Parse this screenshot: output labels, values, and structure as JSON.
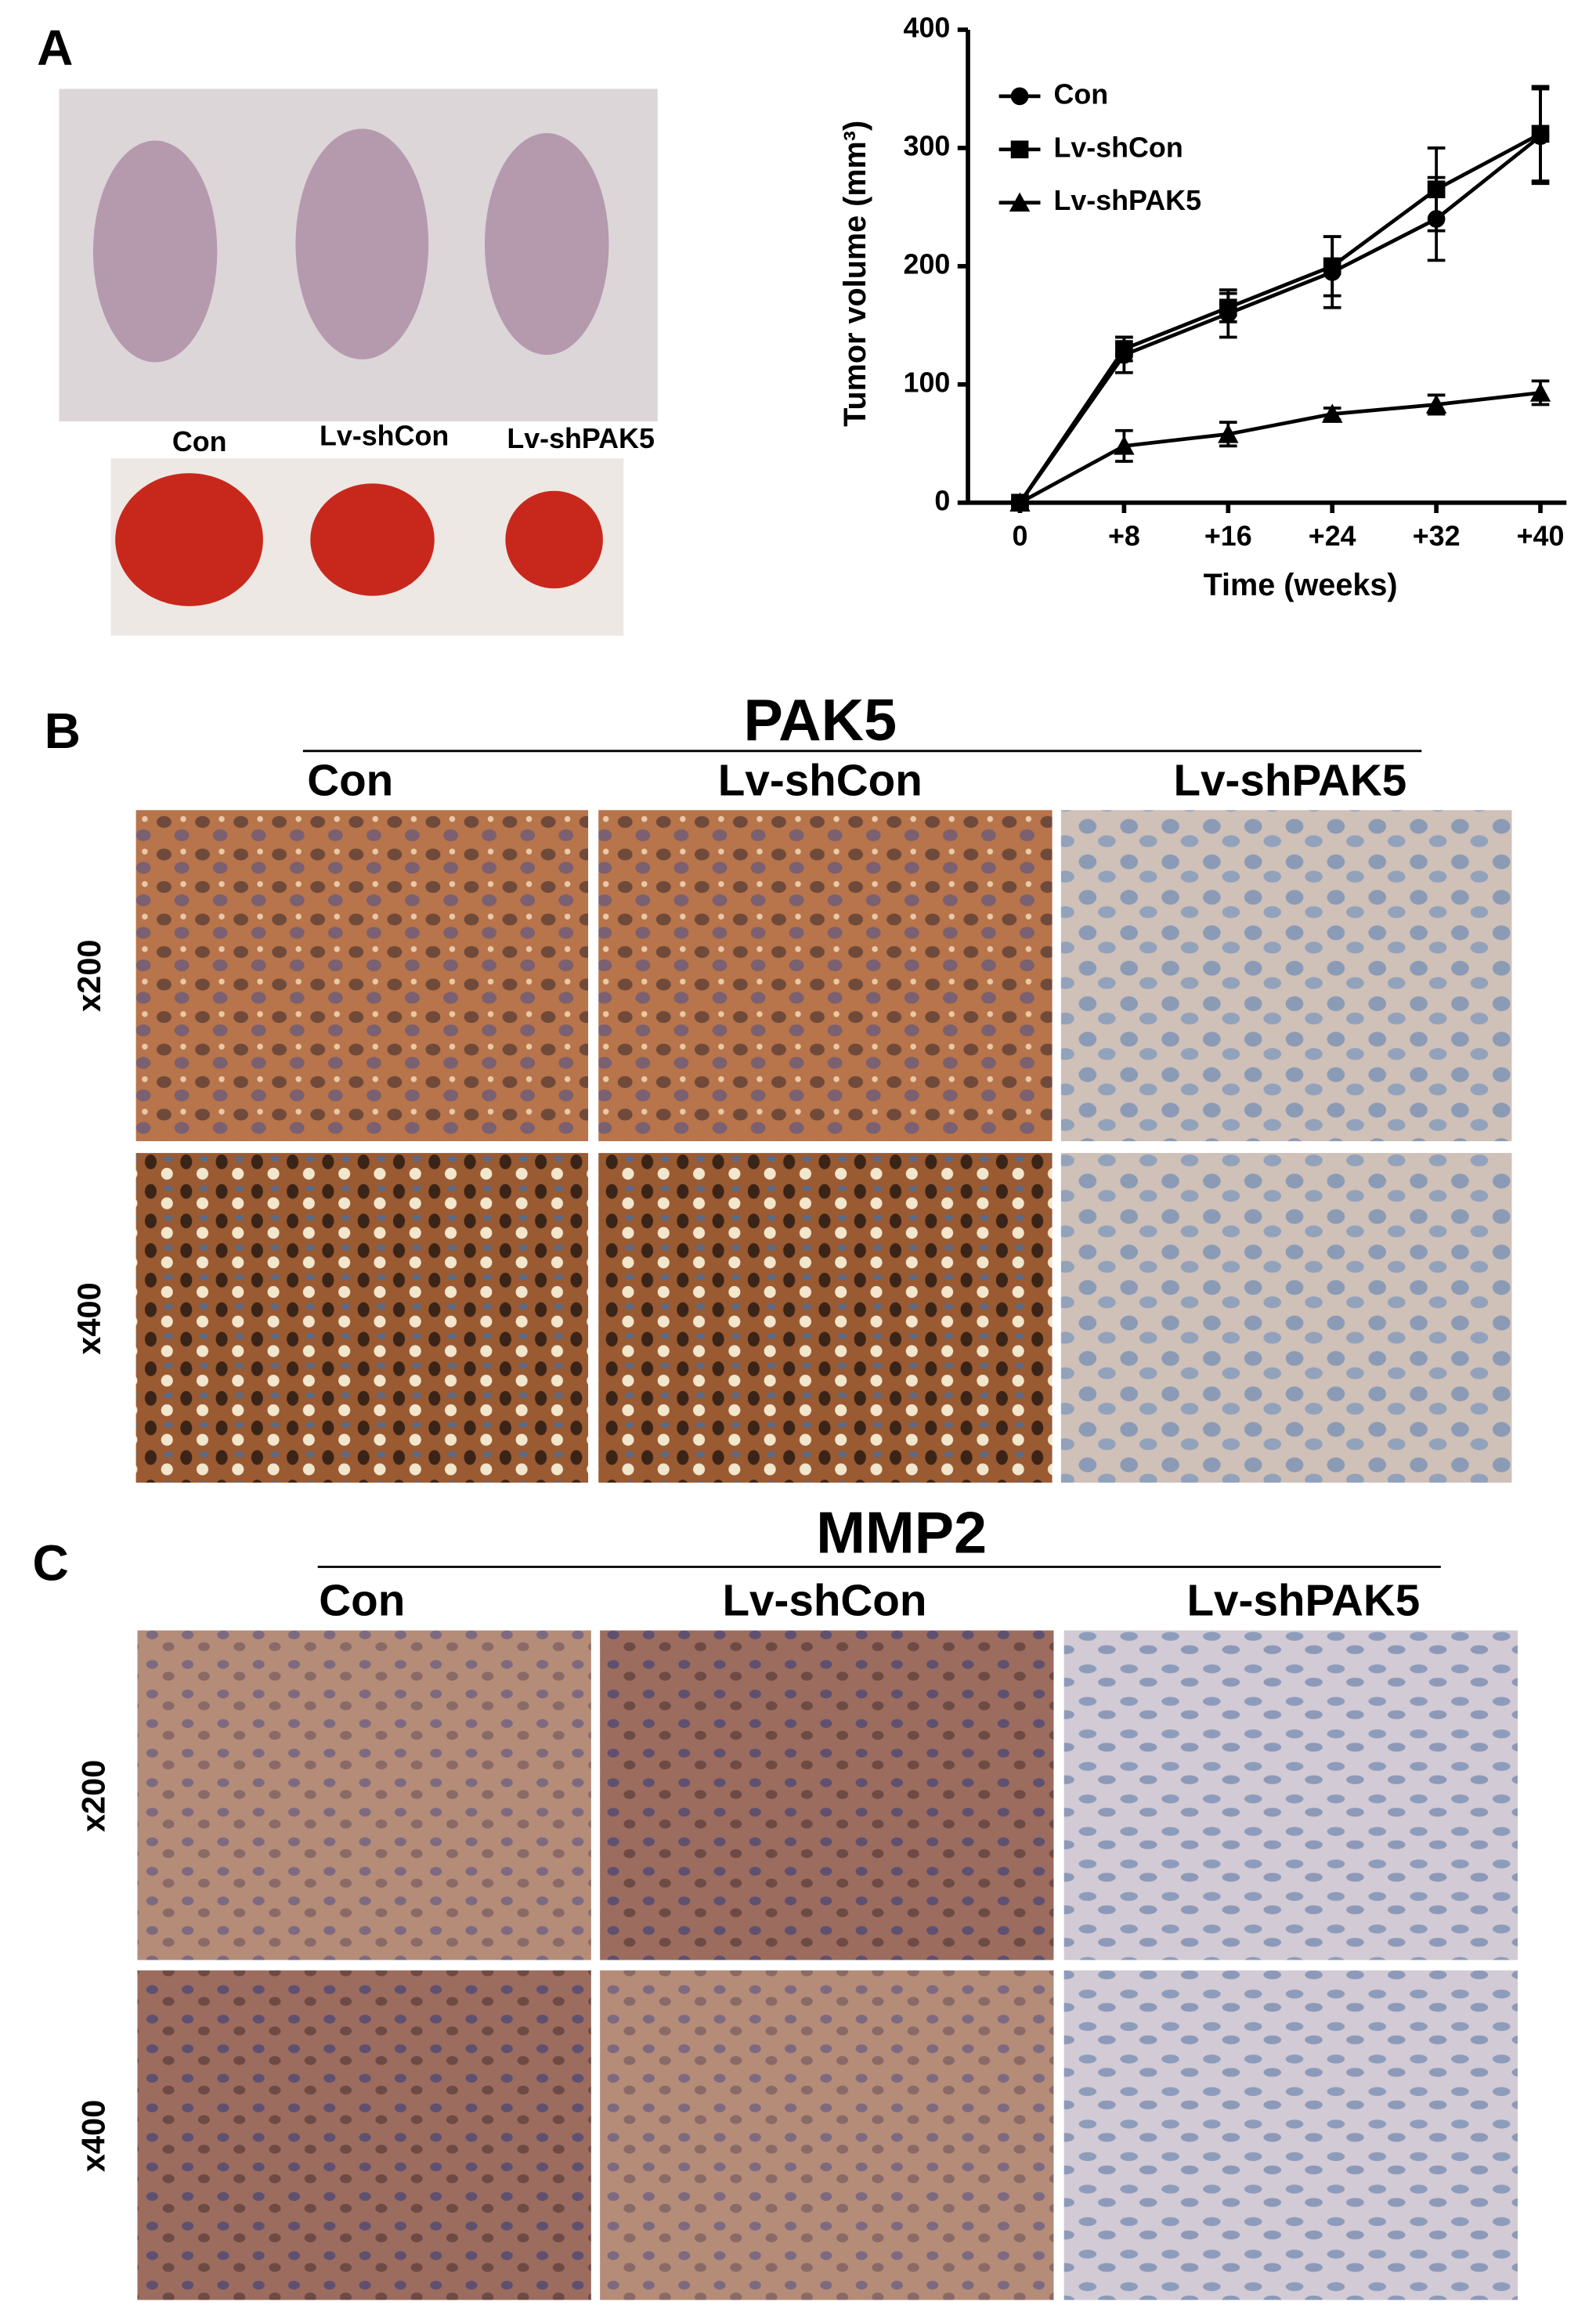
{
  "panel_a": {
    "label": "A",
    "groups": [
      "Con",
      "Lv-shCon",
      "Lv-shPAK5"
    ]
  },
  "chart_data": {
    "type": "line",
    "x_label": "Time (weeks)",
    "y_label": "Tumor volume (mm³)",
    "x": [
      0,
      8,
      16,
      24,
      32,
      40
    ],
    "xlim": [
      -4,
      42
    ],
    "xticks": [
      {
        "value": 0,
        "label": "0"
      },
      {
        "value": 8,
        "label": "+8"
      },
      {
        "value": 16,
        "label": "+16"
      },
      {
        "value": 24,
        "label": "+24"
      },
      {
        "value": 32,
        "label": "+32"
      },
      {
        "value": 40,
        "label": "+40"
      }
    ],
    "ylim": [
      0,
      400
    ],
    "yticks": [
      0,
      100,
      200,
      300,
      400
    ],
    "legend": "top-left",
    "series": [
      {
        "name": "Con",
        "color": "#000000",
        "marker": "circle",
        "values": [
          0,
          125,
          160,
          195,
          240,
          310
        ],
        "errors": [
          2,
          15,
          20,
          30,
          35,
          40
        ]
      },
      {
        "name": "Lv-shCon",
        "color": "#000000",
        "marker": "square",
        "values": [
          0,
          130,
          165,
          200,
          265,
          312
        ],
        "errors": [
          2,
          10,
          12,
          25,
          35,
          40
        ]
      },
      {
        "name": "Lv-shPAK5",
        "color": "#000000",
        "marker": "triangle",
        "values": [
          0,
          48,
          58,
          75,
          83,
          93
        ],
        "errors": [
          2,
          13,
          10,
          5,
          8,
          10
        ]
      }
    ]
  },
  "panel_b": {
    "label": "B",
    "title": "PAK5",
    "columns": [
      "Con",
      "Lv-shCon",
      "Lv-shPAK5"
    ],
    "rows": [
      "x200",
      "x400"
    ]
  },
  "panel_c": {
    "label": "C",
    "title": "MMP2",
    "columns": [
      "Con",
      "Lv-shCon",
      "Lv-shPAK5"
    ],
    "rows": [
      "x200",
      "x400"
    ]
  }
}
